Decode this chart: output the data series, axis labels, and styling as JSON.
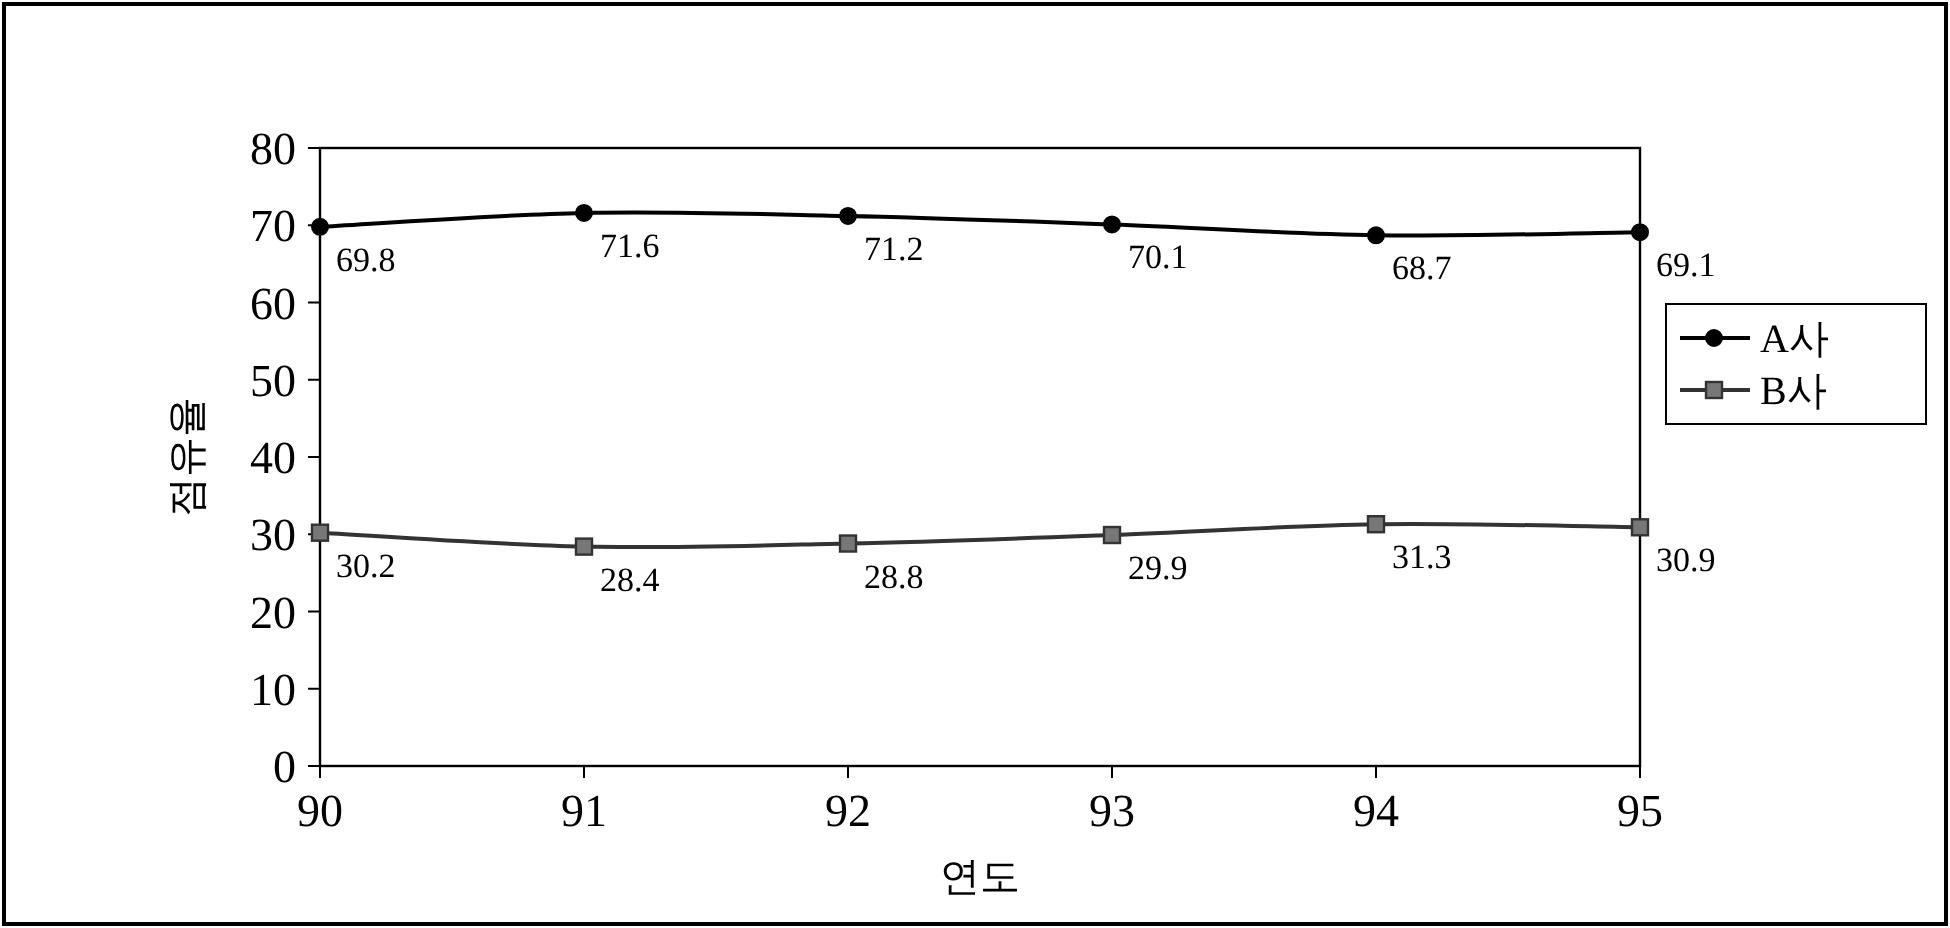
{
  "chart_data": {
    "type": "line",
    "xlabel": "연도",
    "ylabel": "점유율",
    "x": [
      90,
      91,
      92,
      93,
      94,
      95
    ],
    "xlim": [
      90,
      95
    ],
    "xticks": [
      90,
      91,
      92,
      93,
      94,
      95
    ],
    "ylim": [
      0,
      80
    ],
    "yticks": [
      0,
      10,
      20,
      30,
      40,
      50,
      60,
      70,
      80
    ],
    "series": [
      {
        "name": "A사",
        "color": "#000000",
        "marker": "circle",
        "values": [
          69.8,
          71.6,
          71.2,
          70.1,
          68.7,
          69.1
        ]
      },
      {
        "name": "B사",
        "color": "#333333",
        "marker": "square",
        "values": [
          30.2,
          28.4,
          28.8,
          29.9,
          31.3,
          30.9
        ]
      }
    ],
    "data_labels": true,
    "legend": "right",
    "grid": false
  }
}
